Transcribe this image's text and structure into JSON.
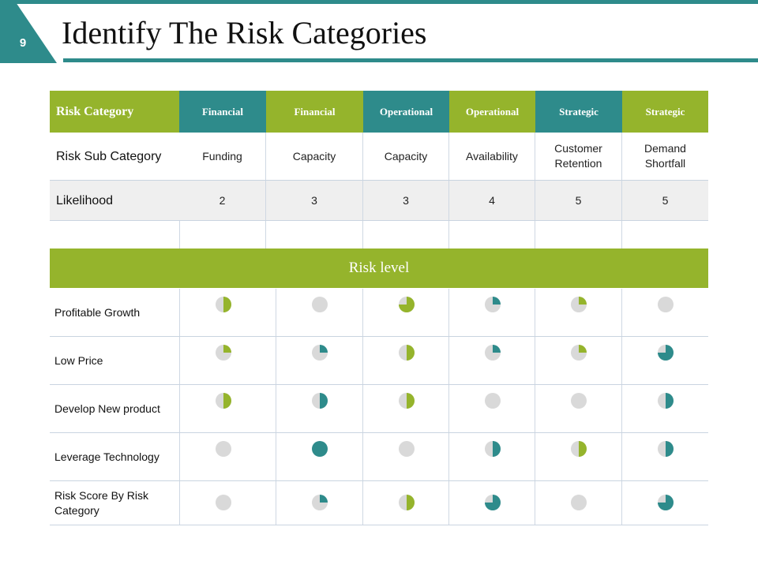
{
  "page_number": "9",
  "title": "Identify The Risk Categories",
  "colors": {
    "teal": "#2e8b8b",
    "green": "#95b42c",
    "grey": "#d9d9d9"
  },
  "table": {
    "header_label": "Risk Category",
    "categories": [
      {
        "label": "Financial",
        "color": "#2e8b8b"
      },
      {
        "label": "Financial",
        "color": "#95b42c"
      },
      {
        "label": "Operational",
        "color": "#2e8b8b"
      },
      {
        "label": "Operational",
        "color": "#95b42c"
      },
      {
        "label": "Strategic",
        "color": "#2e8b8b"
      },
      {
        "label": "Strategic",
        "color": "#95b42c"
      }
    ],
    "sub_category_label": "Risk Sub Category",
    "sub_categories": [
      "Funding",
      "Capacity",
      "Capacity",
      "Availability",
      "Customer Retention",
      "Demand Shortfall"
    ],
    "likelihood_label": "Likelihood",
    "likelihood": [
      "2",
      "3",
      "3",
      "4",
      "5",
      "5"
    ]
  },
  "risk_level": {
    "label": "Risk level",
    "rows": [
      {
        "label": "Profitable Growth",
        "pies": [
          {
            "fill": 0.5,
            "color": "green"
          },
          {
            "fill": 0,
            "color": "green"
          },
          {
            "fill": 0.75,
            "color": "green"
          },
          {
            "fill": 0.25,
            "color": "teal"
          },
          {
            "fill": 0.25,
            "color": "green"
          },
          {
            "fill": 0,
            "color": "green"
          }
        ]
      },
      {
        "label": "Low Price",
        "pies": [
          {
            "fill": 0.25,
            "color": "green"
          },
          {
            "fill": 0.25,
            "color": "teal"
          },
          {
            "fill": 0.5,
            "color": "green"
          },
          {
            "fill": 0.25,
            "color": "teal"
          },
          {
            "fill": 0.25,
            "color": "green"
          },
          {
            "fill": 0.75,
            "color": "teal"
          }
        ]
      },
      {
        "label": "Develop New product",
        "pies": [
          {
            "fill": 0.5,
            "color": "green"
          },
          {
            "fill": 0.5,
            "color": "teal"
          },
          {
            "fill": 0.5,
            "color": "green"
          },
          {
            "fill": 0,
            "color": "green"
          },
          {
            "fill": 0,
            "color": "green"
          },
          {
            "fill": 0.5,
            "color": "teal"
          }
        ]
      },
      {
        "label": "Leverage Technology",
        "pies": [
          {
            "fill": 0,
            "color": "green"
          },
          {
            "fill": 1,
            "color": "teal"
          },
          {
            "fill": 0,
            "color": "green"
          },
          {
            "fill": 0.5,
            "color": "teal"
          },
          {
            "fill": 0.5,
            "color": "green"
          },
          {
            "fill": 0.5,
            "color": "teal"
          }
        ]
      },
      {
        "label": "Risk Score By Risk Category",
        "pies": [
          {
            "fill": 0,
            "color": "green"
          },
          {
            "fill": 0.25,
            "color": "teal"
          },
          {
            "fill": 0.5,
            "color": "green"
          },
          {
            "fill": 0.75,
            "color": "teal"
          },
          {
            "fill": 0,
            "color": "green"
          },
          {
            "fill": 0.75,
            "color": "teal"
          }
        ]
      }
    ]
  }
}
